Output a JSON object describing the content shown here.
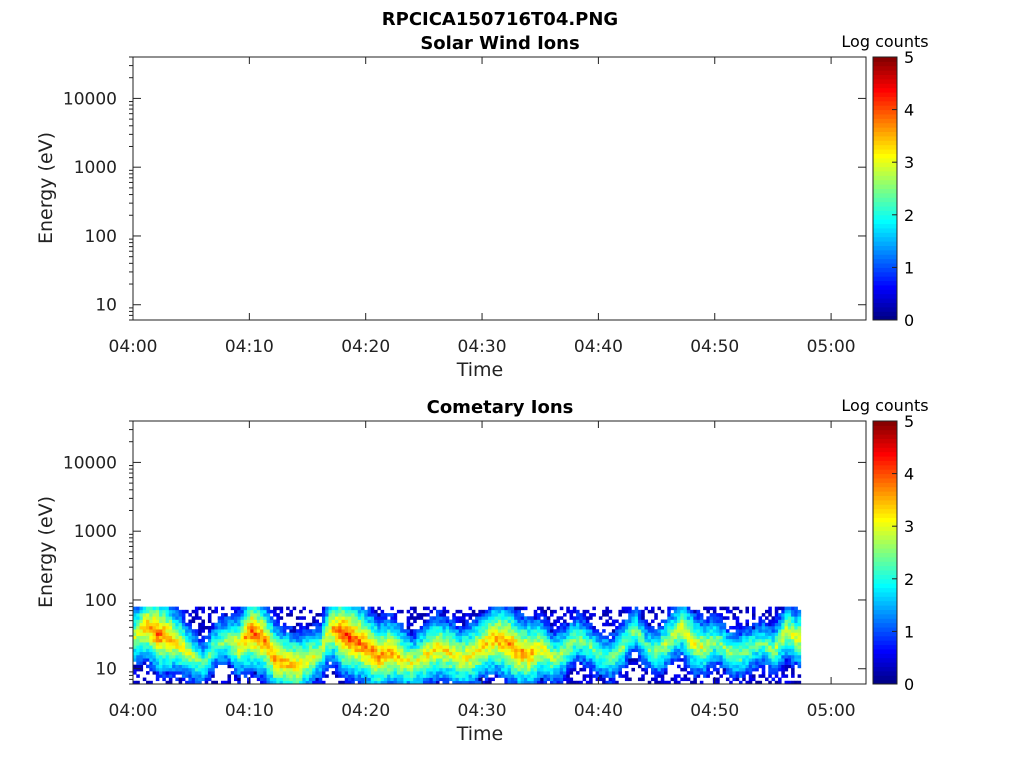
{
  "figure_title": "RPCICA150716T04.PNG",
  "chart_data": [
    {
      "type": "heatmap",
      "title": "Solar Wind Ions",
      "xlabel": "Time",
      "ylabel": "Energy (eV)",
      "x_ticks": [
        "04:00",
        "04:10",
        "04:20",
        "04:30",
        "04:40",
        "04:50",
        "05:00"
      ],
      "xlim_minutes": [
        0,
        63
      ],
      "y_scale": "log",
      "y_ticks": [
        "10",
        "100",
        "1000",
        "10000"
      ],
      "ylim": [
        6,
        40000
      ],
      "colorbar": {
        "label": "Log counts",
        "ticks": [
          "0",
          "1",
          "2",
          "3",
          "4",
          "5"
        ],
        "range": [
          0,
          5
        ],
        "colormap": "jet"
      },
      "data": []
    },
    {
      "type": "heatmap",
      "title": "Cometary Ions",
      "xlabel": "Time",
      "ylabel": "Energy (eV)",
      "x_ticks": [
        "04:00",
        "04:10",
        "04:20",
        "04:30",
        "04:40",
        "04:50",
        "05:00"
      ],
      "xlim_minutes": [
        0,
        63
      ],
      "y_scale": "log",
      "y_ticks": [
        "10",
        "100",
        "1000",
        "10000"
      ],
      "ylim": [
        6,
        40000
      ],
      "colorbar": {
        "label": "Log counts",
        "ticks": [
          "0",
          "1",
          "2",
          "3",
          "4",
          "5"
        ],
        "range": [
          0,
          5
        ],
        "colormap": "jet"
      },
      "data_extent": {
        "time_minutes": [
          0,
          57.3
        ],
        "energy_eV": [
          6,
          80
        ]
      },
      "band_peak_energy_eV": [
        [
          0,
          30
        ],
        [
          1,
          42
        ],
        [
          2,
          32
        ],
        [
          3,
          28
        ],
        [
          4,
          22
        ],
        [
          5,
          15
        ],
        [
          6,
          12
        ],
        [
          7,
          22
        ],
        [
          8,
          26
        ],
        [
          9,
          22
        ],
        [
          10,
          35
        ],
        [
          11,
          28
        ],
        [
          12,
          14
        ],
        [
          13,
          12
        ],
        [
          14,
          11
        ],
        [
          15,
          14
        ],
        [
          16,
          18
        ],
        [
          17,
          40
        ],
        [
          18,
          32
        ],
        [
          19,
          26
        ],
        [
          20,
          20
        ],
        [
          21,
          15
        ],
        [
          22,
          18
        ],
        [
          23,
          14
        ],
        [
          24,
          12
        ],
        [
          25,
          16
        ],
        [
          26,
          20
        ],
        [
          27,
          18
        ],
        [
          28,
          14
        ],
        [
          29,
          16
        ],
        [
          30,
          22
        ],
        [
          31,
          28
        ],
        [
          32,
          24
        ],
        [
          33,
          18
        ],
        [
          34,
          16
        ],
        [
          35,
          20
        ],
        [
          36,
          14
        ],
        [
          37,
          18
        ],
        [
          38,
          28
        ],
        [
          39,
          22
        ],
        [
          40,
          16
        ],
        [
          41,
          14
        ],
        [
          42,
          22
        ],
        [
          43,
          38
        ],
        [
          44,
          20
        ],
        [
          45,
          18
        ],
        [
          46,
          26
        ],
        [
          47,
          40
        ],
        [
          48,
          24
        ],
        [
          49,
          20
        ],
        [
          50,
          26
        ],
        [
          51,
          18
        ],
        [
          52,
          16
        ],
        [
          53,
          20
        ],
        [
          54,
          24
        ],
        [
          55,
          18
        ],
        [
          56,
          35
        ],
        [
          57,
          28
        ]
      ],
      "band_peak_log_counts": [
        [
          0,
          3.0
        ],
        [
          2,
          4.0
        ],
        [
          4,
          3.2
        ],
        [
          6,
          2.4
        ],
        [
          8,
          2.6
        ],
        [
          10,
          4.0
        ],
        [
          12,
          3.6
        ],
        [
          14,
          3.4
        ],
        [
          16,
          2.8
        ],
        [
          18,
          4.2
        ],
        [
          20,
          3.8
        ],
        [
          22,
          3.6
        ],
        [
          24,
          3.0
        ],
        [
          26,
          3.4
        ],
        [
          28,
          3.2
        ],
        [
          30,
          3.4
        ],
        [
          32,
          3.8
        ],
        [
          34,
          3.6
        ],
        [
          36,
          2.8
        ],
        [
          38,
          2.6
        ],
        [
          40,
          2.4
        ],
        [
          42,
          2.6
        ],
        [
          44,
          2.4
        ],
        [
          46,
          2.8
        ],
        [
          48,
          3.2
        ],
        [
          50,
          2.6
        ],
        [
          52,
          2.6
        ],
        [
          54,
          2.4
        ],
        [
          56,
          3.0
        ]
      ]
    }
  ]
}
